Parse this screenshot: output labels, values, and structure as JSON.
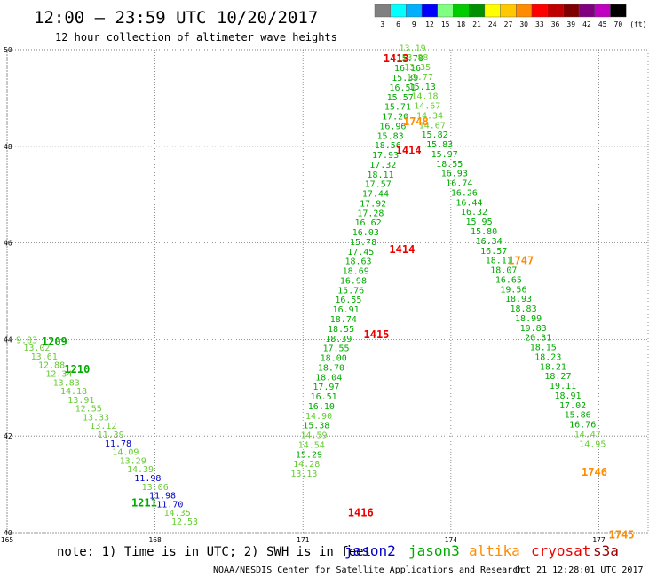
{
  "header": {
    "title": "12:00 – 23:59 UTC 10/20/2017",
    "subtitle": "12 hour collection of altimeter wave heights"
  },
  "legend_scale": {
    "unit": "(ft)",
    "bins": [
      {
        "label": "3",
        "color": "#808080"
      },
      {
        "label": "6",
        "color": "#00ffff"
      },
      {
        "label": "9",
        "color": "#00b0ff"
      },
      {
        "label": "12",
        "color": "#0000ff"
      },
      {
        "label": "15",
        "color": "#80ff80"
      },
      {
        "label": "18",
        "color": "#00cc00"
      },
      {
        "label": "21",
        "color": "#009000"
      },
      {
        "label": "24",
        "color": "#ffff00"
      },
      {
        "label": "27",
        "color": "#ffc800"
      },
      {
        "label": "30",
        "color": "#ff8c00"
      },
      {
        "label": "33",
        "color": "#ff0000"
      },
      {
        "label": "36",
        "color": "#c00000"
      },
      {
        "label": "39",
        "color": "#800000"
      },
      {
        "label": "42",
        "color": "#800080"
      },
      {
        "label": "45",
        "color": "#c000c0"
      },
      {
        "label": "70",
        "color": "#000000"
      }
    ]
  },
  "footer": {
    "note": "note: 1) Time is in UTC; 2) SWH is in feet",
    "satellites": [
      {
        "name": "jason2",
        "color": "#0000cc"
      },
      {
        "name": "jason3",
        "color": "#00aa00"
      },
      {
        "name": "altika",
        "color": "#ff8c00"
      },
      {
        "name": "cryosat",
        "color": "#ee0000"
      },
      {
        "name": "s3a",
        "color": "#990000"
      }
    ],
    "credit": "NOAA/NESDIS Center for Satellite Applications and Research",
    "timestamp": "Oct 21 12:28:01 UTC 2017"
  },
  "chart_data": {
    "type": "scatter",
    "grid": true,
    "xlim": [
      165,
      178
    ],
    "ylim": [
      40,
      50
    ],
    "x_ticks": [
      "165",
      "168",
      "171",
      "174",
      "177"
    ],
    "y_ticks": [
      "40",
      "42",
      "44",
      "46",
      "48",
      "50"
    ],
    "colors": {
      "jason3_light": "#66cc33",
      "jason3_dark": "#00aa00",
      "jason2": "#0000cc",
      "altika": "#ff8c00",
      "cryosat": "#ee0000"
    },
    "time_labels": [
      {
        "text": "1413",
        "lon": 172.63,
        "lat": 49.83,
        "satellite": "cryosat"
      },
      {
        "text": "1748",
        "lon": 173.03,
        "lat": 48.53,
        "satellite": "altika"
      },
      {
        "text": "1414",
        "lon": 172.88,
        "lat": 47.93,
        "satellite": "cryosat"
      },
      {
        "text": "1414",
        "lon": 172.75,
        "lat": 45.88,
        "satellite": "cryosat"
      },
      {
        "text": "1747",
        "lon": 175.16,
        "lat": 45.65,
        "satellite": "altika"
      },
      {
        "text": "1415",
        "lon": 172.23,
        "lat": 44.12,
        "satellite": "cryosat"
      },
      {
        "text": "1209",
        "lon": 165.7,
        "lat": 43.97,
        "satellite": "jason3"
      },
      {
        "text": "1210",
        "lon": 166.16,
        "lat": 43.4,
        "satellite": "jason3"
      },
      {
        "text": "1746",
        "lon": 176.65,
        "lat": 41.27,
        "satellite": "altika"
      },
      {
        "text": "1211",
        "lon": 167.52,
        "lat": 40.63,
        "satellite": "jason3"
      },
      {
        "text": "1416",
        "lon": 171.91,
        "lat": 40.43,
        "satellite": "cryosat"
      },
      {
        "text": "1745",
        "lon": 177.2,
        "lat": 39.97,
        "satellite": "altika"
      }
    ],
    "tracks": [
      {
        "name": "jason3-jason2 west track",
        "points": [
          {
            "lon": 165.18,
            "lat": 44.0,
            "swh": 9.03,
            "shade": "jason3_light"
          },
          {
            "lon": 165.33,
            "lat": 43.84,
            "swh": 13.02,
            "shade": "jason3_light"
          },
          {
            "lon": 165.48,
            "lat": 43.66,
            "swh": 13.61,
            "shade": "jason3_light"
          },
          {
            "lon": 165.63,
            "lat": 43.48,
            "swh": 12.88,
            "shade": "jason3_light"
          },
          {
            "lon": 165.78,
            "lat": 43.3,
            "swh": 12.34,
            "shade": "jason3_light"
          },
          {
            "lon": 165.93,
            "lat": 43.12,
            "swh": 13.83,
            "shade": "jason3_light"
          },
          {
            "lon": 166.08,
            "lat": 42.94,
            "swh": 14.18,
            "shade": "jason3_light"
          },
          {
            "lon": 166.23,
            "lat": 42.76,
            "swh": 13.91,
            "shade": "jason3_light"
          },
          {
            "lon": 166.38,
            "lat": 42.58,
            "swh": 12.55,
            "shade": "jason3_light"
          },
          {
            "lon": 166.53,
            "lat": 42.4,
            "swh": 13.33,
            "shade": "jason3_light"
          },
          {
            "lon": 166.68,
            "lat": 42.22,
            "swh": 13.12,
            "shade": "jason3_light"
          },
          {
            "lon": 166.83,
            "lat": 42.04,
            "swh": 11.39,
            "shade": "jason3_light"
          },
          {
            "lon": 166.98,
            "lat": 41.86,
            "swh": 11.78,
            "shade": "jason2"
          },
          {
            "lon": 167.13,
            "lat": 41.68,
            "swh": 14.09,
            "shade": "jason3_light"
          },
          {
            "lon": 167.28,
            "lat": 41.5,
            "swh": 13.29,
            "shade": "jason3_light"
          },
          {
            "lon": 167.43,
            "lat": 41.32,
            "swh": 14.39,
            "shade": "jason3_light"
          },
          {
            "lon": 167.58,
            "lat": 41.14,
            "swh": 11.98,
            "shade": "jason2"
          },
          {
            "lon": 167.73,
            "lat": 40.96,
            "swh": 13.06,
            "shade": "jason3_light"
          },
          {
            "lon": 167.88,
            "lat": 40.78,
            "swh": 11.98,
            "shade": "jason2"
          },
          {
            "lon": 168.03,
            "lat": 40.6,
            "swh": 11.7,
            "shade": "jason2"
          },
          {
            "lon": 168.18,
            "lat": 40.42,
            "swh": 14.35,
            "shade": "jason3_light"
          },
          {
            "lon": 168.33,
            "lat": 40.24,
            "swh": 12.53,
            "shade": "jason3_light"
          }
        ]
      },
      {
        "name": "cryosat track",
        "points": [
          {
            "lon": 172.9,
            "lat": 49.83,
            "swh": 15.78,
            "shade": "jason3_dark"
          },
          {
            "lon": 172.85,
            "lat": 49.63,
            "swh": 16.16,
            "shade": "jason3_dark"
          },
          {
            "lon": 172.8,
            "lat": 49.43,
            "swh": 15.39,
            "shade": "jason3_dark"
          },
          {
            "lon": 172.75,
            "lat": 49.23,
            "swh": 16.51,
            "shade": "jason3_dark"
          },
          {
            "lon": 172.7,
            "lat": 49.03,
            "swh": 15.57,
            "shade": "jason3_dark"
          },
          {
            "lon": 172.65,
            "lat": 48.83,
            "swh": 15.71,
            "shade": "jason3_dark"
          },
          {
            "lon": 172.6,
            "lat": 48.63,
            "swh": 17.2,
            "shade": "jason3_dark"
          },
          {
            "lon": 172.55,
            "lat": 48.43,
            "swh": 16.96,
            "shade": "jason3_dark"
          },
          {
            "lon": 172.5,
            "lat": 48.23,
            "swh": 15.83,
            "shade": "jason3_dark"
          },
          {
            "lon": 172.45,
            "lat": 48.03,
            "swh": 18.56,
            "shade": "jason3_dark"
          },
          {
            "lon": 172.4,
            "lat": 47.83,
            "swh": 17.93,
            "shade": "jason3_dark"
          },
          {
            "lon": 172.35,
            "lat": 47.63,
            "swh": 17.32,
            "shade": "jason3_dark"
          },
          {
            "lon": 172.3,
            "lat": 47.43,
            "swh": 18.11,
            "shade": "jason3_dark"
          },
          {
            "lon": 172.25,
            "lat": 47.23,
            "swh": 17.57,
            "shade": "jason3_dark"
          },
          {
            "lon": 172.2,
            "lat": 47.03,
            "swh": 17.44,
            "shade": "jason3_dark"
          },
          {
            "lon": 172.15,
            "lat": 46.83,
            "swh": 17.92,
            "shade": "jason3_dark"
          },
          {
            "lon": 172.1,
            "lat": 46.63,
            "swh": 17.28,
            "shade": "jason3_dark"
          },
          {
            "lon": 172.05,
            "lat": 46.43,
            "swh": 16.62,
            "shade": "jason3_dark"
          },
          {
            "lon": 172.0,
            "lat": 46.23,
            "swh": 16.03,
            "shade": "jason3_dark"
          },
          {
            "lon": 171.95,
            "lat": 46.03,
            "swh": 15.78,
            "shade": "jason3_dark"
          },
          {
            "lon": 171.9,
            "lat": 45.83,
            "swh": 17.45,
            "shade": "jason3_dark"
          },
          {
            "lon": 171.85,
            "lat": 45.63,
            "swh": 18.63,
            "shade": "jason3_dark"
          },
          {
            "lon": 171.8,
            "lat": 45.43,
            "swh": 18.69,
            "shade": "jason3_dark"
          },
          {
            "lon": 171.75,
            "lat": 45.23,
            "swh": 16.98,
            "shade": "jason3_dark"
          },
          {
            "lon": 171.7,
            "lat": 45.03,
            "swh": 15.76,
            "shade": "jason3_dark"
          },
          {
            "lon": 171.65,
            "lat": 44.83,
            "swh": 16.55,
            "shade": "jason3_dark"
          },
          {
            "lon": 171.6,
            "lat": 44.63,
            "swh": 16.91,
            "shade": "jason3_dark"
          },
          {
            "lon": 171.55,
            "lat": 44.43,
            "swh": 18.74,
            "shade": "jason3_dark"
          },
          {
            "lon": 171.5,
            "lat": 44.23,
            "swh": 18.55,
            "shade": "jason3_dark"
          },
          {
            "lon": 171.45,
            "lat": 44.03,
            "swh": 18.39,
            "shade": "jason3_dark"
          },
          {
            "lon": 171.4,
            "lat": 43.83,
            "swh": 17.55,
            "shade": "jason3_dark"
          },
          {
            "lon": 171.35,
            "lat": 43.63,
            "swh": 18.0,
            "shade": "jason3_dark"
          },
          {
            "lon": 171.3,
            "lat": 43.43,
            "swh": 18.7,
            "shade": "jason3_dark"
          },
          {
            "lon": 171.25,
            "lat": 43.23,
            "swh": 18.04,
            "shade": "jason3_dark"
          },
          {
            "lon": 171.2,
            "lat": 43.03,
            "swh": 17.97,
            "shade": "jason3_dark"
          },
          {
            "lon": 171.15,
            "lat": 42.83,
            "swh": 16.51,
            "shade": "jason3_dark"
          },
          {
            "lon": 171.1,
            "lat": 42.63,
            "swh": 16.1,
            "shade": "jason3_dark"
          },
          {
            "lon": 171.05,
            "lat": 42.43,
            "swh": 14.9,
            "shade": "jason3_light"
          },
          {
            "lon": 171.0,
            "lat": 42.23,
            "swh": 15.38,
            "shade": "jason3_dark"
          },
          {
            "lon": 170.95,
            "lat": 42.03,
            "swh": 14.59,
            "shade": "jason3_light"
          },
          {
            "lon": 170.9,
            "lat": 41.83,
            "swh": 14.54,
            "shade": "jason3_light"
          },
          {
            "lon": 170.85,
            "lat": 41.63,
            "swh": 15.29,
            "shade": "jason3_dark"
          },
          {
            "lon": 170.8,
            "lat": 41.43,
            "swh": 14.28,
            "shade": "jason3_light"
          },
          {
            "lon": 170.75,
            "lat": 41.23,
            "swh": 13.13,
            "shade": "jason3_light"
          }
        ]
      },
      {
        "name": "altika track",
        "points": [
          {
            "lon": 172.95,
            "lat": 50.05,
            "swh": 13.19,
            "shade": "jason3_light"
          },
          {
            "lon": 173.0,
            "lat": 49.85,
            "swh": 13.88,
            "shade": "jason3_light"
          },
          {
            "lon": 173.05,
            "lat": 49.65,
            "swh": 13.35,
            "shade": "jason3_light"
          },
          {
            "lon": 173.1,
            "lat": 49.45,
            "swh": 13.77,
            "shade": "jason3_light"
          },
          {
            "lon": 173.15,
            "lat": 49.25,
            "swh": 15.13,
            "shade": "jason3_dark"
          },
          {
            "lon": 173.2,
            "lat": 49.05,
            "swh": 14.18,
            "shade": "jason3_light"
          },
          {
            "lon": 173.25,
            "lat": 48.85,
            "swh": 14.67,
            "shade": "jason3_light"
          },
          {
            "lon": 173.3,
            "lat": 48.65,
            "swh": 14.34,
            "shade": "jason3_light"
          },
          {
            "lon": 173.35,
            "lat": 48.45,
            "swh": 14.67,
            "shade": "jason3_light"
          },
          {
            "lon": 173.4,
            "lat": 48.25,
            "swh": 15.82,
            "shade": "jason3_dark"
          },
          {
            "lon": 173.5,
            "lat": 48.05,
            "swh": 15.83,
            "shade": "jason3_dark"
          },
          {
            "lon": 173.6,
            "lat": 47.85,
            "swh": 15.97,
            "shade": "jason3_dark"
          },
          {
            "lon": 173.7,
            "lat": 47.65,
            "swh": 18.55,
            "shade": "jason3_dark"
          },
          {
            "lon": 173.8,
            "lat": 47.45,
            "swh": 16.93,
            "shade": "jason3_dark"
          },
          {
            "lon": 173.9,
            "lat": 47.25,
            "swh": 16.74,
            "shade": "jason3_dark"
          },
          {
            "lon": 174.0,
            "lat": 47.05,
            "swh": 16.26,
            "shade": "jason3_dark"
          },
          {
            "lon": 174.1,
            "lat": 46.85,
            "swh": 16.44,
            "shade": "jason3_dark"
          },
          {
            "lon": 174.2,
            "lat": 46.65,
            "swh": 16.32,
            "shade": "jason3_dark"
          },
          {
            "lon": 174.3,
            "lat": 46.45,
            "swh": 15.95,
            "shade": "jason3_dark"
          },
          {
            "lon": 174.4,
            "lat": 46.25,
            "swh": 15.8,
            "shade": "jason3_dark"
          },
          {
            "lon": 174.5,
            "lat": 46.05,
            "swh": 16.34,
            "shade": "jason3_dark"
          },
          {
            "lon": 174.6,
            "lat": 45.85,
            "swh": 16.57,
            "shade": "jason3_dark"
          },
          {
            "lon": 174.7,
            "lat": 45.65,
            "swh": 18.11,
            "shade": "jason3_dark"
          },
          {
            "lon": 174.8,
            "lat": 45.45,
            "swh": 18.07,
            "shade": "jason3_dark"
          },
          {
            "lon": 174.9,
            "lat": 45.25,
            "swh": 16.65,
            "shade": "jason3_dark"
          },
          {
            "lon": 175.0,
            "lat": 45.05,
            "swh": 19.56,
            "shade": "jason3_dark"
          },
          {
            "lon": 175.1,
            "lat": 44.85,
            "swh": 18.93,
            "shade": "jason3_dark"
          },
          {
            "lon": 175.2,
            "lat": 44.65,
            "swh": 18.83,
            "shade": "jason3_dark"
          },
          {
            "lon": 175.3,
            "lat": 44.45,
            "swh": 18.99,
            "shade": "jason3_dark"
          },
          {
            "lon": 175.4,
            "lat": 44.25,
            "swh": 19.83,
            "shade": "jason3_dark"
          },
          {
            "lon": 175.5,
            "lat": 44.05,
            "swh": 20.31,
            "shade": "jason3_dark"
          },
          {
            "lon": 175.6,
            "lat": 43.85,
            "swh": 18.15,
            "shade": "jason3_dark"
          },
          {
            "lon": 175.7,
            "lat": 43.65,
            "swh": 18.23,
            "shade": "jason3_dark"
          },
          {
            "lon": 175.8,
            "lat": 43.45,
            "swh": 18.21,
            "shade": "jason3_dark"
          },
          {
            "lon": 175.9,
            "lat": 43.25,
            "swh": 18.27,
            "shade": "jason3_dark"
          },
          {
            "lon": 176.0,
            "lat": 43.05,
            "swh": 19.11,
            "shade": "jason3_dark"
          },
          {
            "lon": 176.1,
            "lat": 42.85,
            "swh": 18.91,
            "shade": "jason3_dark"
          },
          {
            "lon": 176.2,
            "lat": 42.65,
            "swh": 17.02,
            "shade": "jason3_dark"
          },
          {
            "lon": 176.3,
            "lat": 42.45,
            "swh": 15.86,
            "shade": "jason3_dark"
          },
          {
            "lon": 176.4,
            "lat": 42.25,
            "swh": 16.76,
            "shade": "jason3_dark"
          },
          {
            "lon": 176.5,
            "lat": 42.05,
            "swh": 14.47,
            "shade": "jason3_light"
          },
          {
            "lon": 176.6,
            "lat": 41.85,
            "swh": 14.95,
            "shade": "jason3_light"
          }
        ]
      }
    ]
  }
}
